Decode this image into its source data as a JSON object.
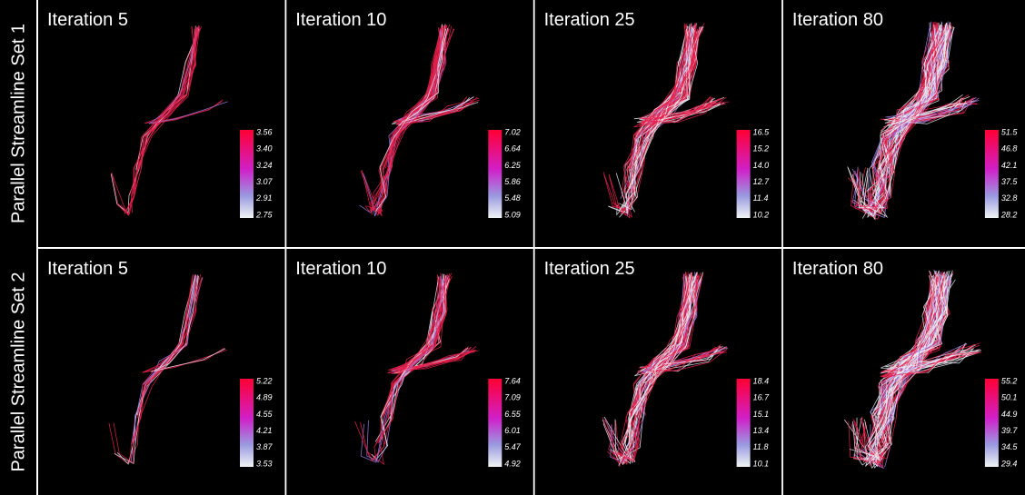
{
  "rows": [
    {
      "label": "Parallel Streamline Set 1",
      "panels": [
        {
          "title": "Iteration 5",
          "scale": [
            "3.56",
            "3.40",
            "3.24",
            "3.07",
            "2.91",
            "2.75"
          ]
        },
        {
          "title": "Iteration 10",
          "scale": [
            "7.02",
            "6.64",
            "6.25",
            "5.86",
            "5.48",
            "5.09"
          ]
        },
        {
          "title": "Iteration 25",
          "scale": [
            "16.5",
            "15.2",
            "14.0",
            "12.7",
            "11.4",
            "10.2"
          ]
        },
        {
          "title": "Iteration 80",
          "scale": [
            "51.5",
            "46.8",
            "42.1",
            "37.5",
            "32.8",
            "28.2"
          ]
        }
      ]
    },
    {
      "label": "Parallel Streamline Set 2",
      "panels": [
        {
          "title": "Iteration 5",
          "scale": [
            "5.22",
            "4.89",
            "4.55",
            "4.21",
            "3.87",
            "3.53"
          ]
        },
        {
          "title": "Iteration 10",
          "scale": [
            "7.64",
            "7.09",
            "6.55",
            "6.01",
            "5.47",
            "4.92"
          ]
        },
        {
          "title": "Iteration 25",
          "scale": [
            "18.4",
            "16.7",
            "15.1",
            "13.4",
            "11.8",
            "10.1"
          ]
        },
        {
          "title": "Iteration 80",
          "scale": [
            "55.2",
            "50.1",
            "44.9",
            "39.7",
            "34.5",
            "29.4"
          ]
        }
      ]
    }
  ]
}
